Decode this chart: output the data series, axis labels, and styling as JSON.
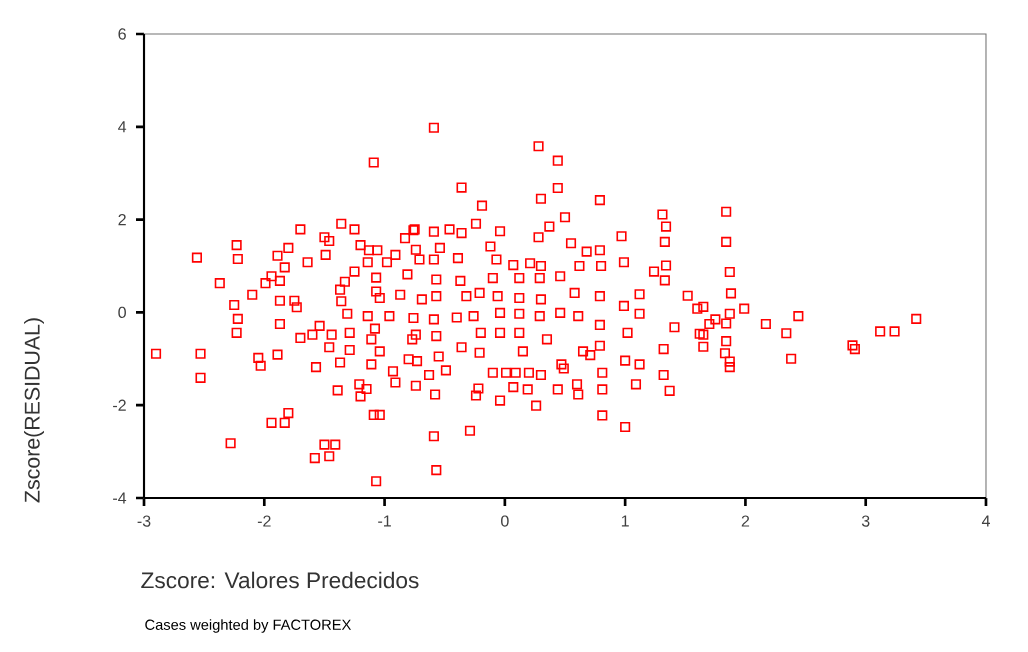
{
  "chart_data": {
    "type": "scatter",
    "xlabel": "Zscore:  Valores Predecidos",
    "ylabel": "Zscore(RESIDUAL)",
    "annotations": [
      "Cases weighted by FACTOREX"
    ],
    "xlim": [
      -3,
      4
    ],
    "ylim": [
      -4,
      6
    ],
    "xticks": [
      -3,
      -2,
      -1,
      0,
      1,
      2,
      3,
      4
    ],
    "yticks": [
      -4,
      -2,
      0,
      2,
      4,
      6
    ],
    "marker": "square",
    "color": "#ff0000",
    "x": [
      -2.9,
      -2.56,
      -2.53,
      -2.53,
      -2.37,
      -2.22,
      -2.23,
      -2.25,
      -2.22,
      -2.23,
      -2.1,
      -2.28,
      -2.05,
      -2.03,
      -1.89,
      -1.94,
      -1.83,
      -1.8,
      -1.99,
      -1.94,
      -1.87,
      -1.87,
      -1.75,
      -1.73,
      -1.87,
      -1.89,
      -1.8,
      -1.83,
      -1.7,
      -1.64,
      -1.7,
      -1.6,
      -1.54,
      -1.57,
      -1.5,
      -1.46,
      -1.36,
      -1.25,
      -1.49,
      -1.46,
      -1.44,
      -1.37,
      -1.39,
      -1.5,
      -1.41,
      -1.58,
      -1.46,
      -1.37,
      -1.33,
      -1.36,
      -1.31,
      -1.29,
      -1.29,
      -1.21,
      -1.15,
      -1.2,
      -1.25,
      -1.2,
      -1.13,
      -1.06,
      -1.09,
      -1.07,
      -1.09,
      -1.04,
      -1.14,
      -1.08,
      -1.11,
      -1.11,
      -1.04,
      -1.04,
      -1.07,
      -1.07,
      -1.14,
      -0.98,
      -0.91,
      -0.83,
      -0.76,
      -0.96,
      -0.93,
      -0.91,
      -0.87,
      -0.81,
      -0.77,
      -0.8,
      -0.74,
      -0.59,
      0.28,
      0.44,
      0.44,
      -0.36,
      -0.19,
      0.3,
      0.79,
      0.5,
      0.37,
      1.31,
      1.34,
      1.33,
      1.34,
      1.33,
      0.97,
      -0.24,
      -0.04,
      -0.36,
      -0.75,
      -0.59,
      -0.46,
      0.28,
      0.55,
      0.68,
      0.79,
      0.99,
      1.24,
      1.52,
      1.6,
      1.62,
      1.41,
      1.12,
      1.12,
      0.99,
      1.02,
      0.79,
      0.81,
      0.81,
      0.81,
      1.0,
      1.09,
      1.0,
      1.12,
      1.32,
      1.37,
      1.32,
      0.6,
      0.61,
      0.44,
      0.49,
      0.26,
      -0.04,
      -0.22,
      -0.24,
      -0.58,
      -0.63,
      -0.49,
      -0.29,
      -0.59,
      -0.57,
      -0.73,
      -0.55,
      -0.36,
      -0.21,
      0.15,
      0.09,
      0.2,
      0.3,
      0.07,
      0.19,
      -0.1,
      0.01,
      0.65,
      0.71,
      0.47,
      0.35,
      0.12,
      -0.04,
      -0.2,
      -0.57,
      -0.74,
      -0.76,
      -0.59,
      -0.4,
      -0.26,
      -0.04,
      0.12,
      0.29,
      0.46,
      0.61,
      0.79,
      -0.69,
      -0.57,
      -0.32,
      -0.21,
      -0.06,
      0.12,
      0.3,
      0.58,
      0.79,
      -0.57,
      -0.37,
      -0.1,
      0.12,
      0.29,
      0.46,
      -0.59,
      -0.71,
      -0.39,
      -0.07,
      0.07,
      0.21,
      0.3,
      0.62,
      0.8,
      -0.74,
      -0.54,
      -0.12,
      1.84,
      1.84,
      1.87,
      1.88,
      1.65,
      1.99,
      2.44,
      2.17,
      1.75,
      1.7,
      1.87,
      1.84,
      2.34,
      1.65,
      1.84,
      1.65,
      1.83,
      1.87,
      1.87,
      2.38,
      2.89,
      2.91,
      3.12,
      3.24,
      3.42
    ],
    "values": [
      -0.89,
      1.18,
      -0.89,
      -1.41,
      0.63,
      1.15,
      1.45,
      0.16,
      -0.14,
      -0.44,
      0.38,
      -2.82,
      -0.98,
      -1.15,
      -0.91,
      -2.38,
      -2.38,
      -2.17,
      0.63,
      0.78,
      0.68,
      0.25,
      0.25,
      0.11,
      -0.25,
      1.22,
      1.39,
      0.97,
      1.79,
      1.08,
      -0.55,
      -0.48,
      -0.29,
      -1.18,
      1.62,
      1.54,
      1.91,
      1.79,
      1.24,
      -0.75,
      -0.48,
      -1.08,
      -1.68,
      -2.85,
      -2.85,
      -3.14,
      -3.1,
      0.49,
      0.66,
      0.24,
      -0.03,
      -0.81,
      -0.44,
      -1.55,
      -1.65,
      -1.81,
      0.88,
      1.45,
      1.34,
      1.34,
      3.23,
      -3.64,
      -2.21,
      -2.21,
      -0.08,
      -0.35,
      -0.58,
      -1.12,
      -0.84,
      0.31,
      0.45,
      0.75,
      1.08,
      1.08,
      1.24,
      1.6,
      1.77,
      -0.08,
      -1.27,
      -1.51,
      0.38,
      0.82,
      -0.58,
      -1.01,
      -1.58,
      3.98,
      3.58,
      3.27,
      2.68,
      2.69,
      2.3,
      2.45,
      2.42,
      2.05,
      1.85,
      2.11,
      1.85,
      1.52,
      1.01,
      0.69,
      1.64,
      1.91,
      1.75,
      1.71,
      1.79,
      1.74,
      1.79,
      1.62,
      1.49,
      1.31,
      1.34,
      1.08,
      0.88,
      0.36,
      0.08,
      -0.46,
      -0.32,
      0.39,
      -0.03,
      0.14,
      -0.44,
      -0.72,
      -1.3,
      -1.66,
      -2.22,
      -2.47,
      -1.55,
      -1.04,
      -1.12,
      -1.35,
      -1.69,
      -0.79,
      -1.55,
      -1.77,
      -1.66,
      -1.21,
      -2.01,
      -1.9,
      -1.64,
      -1.79,
      -1.77,
      -1.35,
      -1.25,
      -2.55,
      -2.67,
      -3.4,
      -1.05,
      -0.95,
      -0.75,
      -0.87,
      -0.84,
      -1.3,
      -1.3,
      -1.35,
      -1.61,
      -1.66,
      -1.3,
      -1.3,
      -0.84,
      -0.92,
      -1.12,
      -0.58,
      -0.44,
      -0.44,
      -0.44,
      -0.51,
      -0.48,
      -0.12,
      -0.15,
      -0.11,
      -0.08,
      -0.01,
      -0.03,
      -0.08,
      -0.01,
      -0.08,
      -0.27,
      0.28,
      0.35,
      0.35,
      0.42,
      0.35,
      0.31,
      0.28,
      0.42,
      0.35,
      0.71,
      0.68,
      0.74,
      0.74,
      0.74,
      0.78,
      1.14,
      1.14,
      1.17,
      1.14,
      1.02,
      1.06,
      1.0,
      1.0,
      1.0,
      1.35,
      1.39,
      1.42,
      2.17,
      1.52,
      0.87,
      0.41,
      0.12,
      0.08,
      -0.08,
      -0.25,
      -0.15,
      -0.25,
      -0.03,
      -0.24,
      -0.45,
      -0.48,
      -0.62,
      -0.74,
      -0.88,
      -1.06,
      -1.18,
      -1.0,
      -0.71,
      -0.79,
      -0.41,
      -0.41,
      -0.14
    ]
  }
}
